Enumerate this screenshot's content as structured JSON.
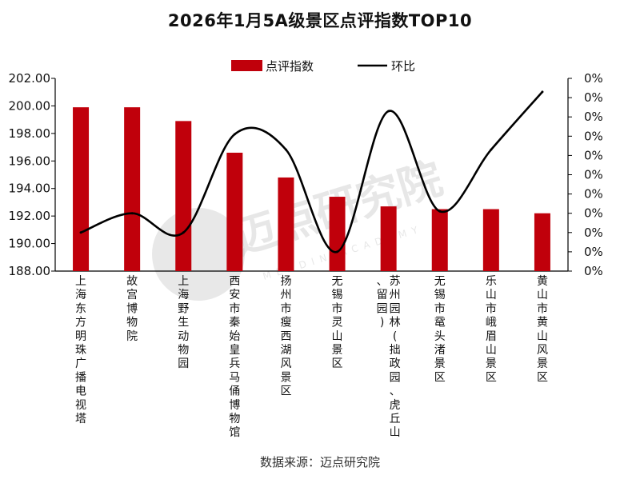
{
  "chart_data": {
    "type": "bar",
    "title": "2026年1月5A级景区点评指数TOP10",
    "categories": [
      "上海东方明珠广播电视塔",
      "故宫博物院",
      "上海野生动物园",
      "西安市秦始皇兵马俑博物馆",
      "扬州市瘦西湖风景区",
      "无锡市灵山景区",
      "苏州园林(拙政园、虎丘山、留园)",
      "无锡市鼋头渚景区",
      "乐山市峨眉山景区",
      "黄山市黄山风景区"
    ],
    "series": [
      {
        "name": "点评指数",
        "type": "bar",
        "axis": "left",
        "color": "#c0000b",
        "values": [
          199.9,
          199.9,
          198.9,
          196.6,
          194.8,
          193.4,
          192.7,
          192.5,
          192.5,
          192.2
        ]
      },
      {
        "name": "环比",
        "type": "line",
        "axis": "right",
        "color": "#000000",
        "values": [
          0.002,
          0.003,
          0.002,
          0.0071,
          0.0063,
          0.001,
          0.0083,
          0.0031,
          0.0063,
          0.0093
        ]
      }
    ],
    "y_left": {
      "ylim": [
        188.0,
        202.0
      ],
      "ticks": [
        "202.00",
        "200.00",
        "198.00",
        "196.00",
        "194.00",
        "192.00",
        "190.00",
        "188.00"
      ]
    },
    "y_right": {
      "ylim": [
        0.0,
        0.01
      ],
      "ticks": [
        "0%",
        "0%",
        "0%",
        "0%",
        "0%",
        "0%",
        "0%",
        "0%",
        "0%",
        "0%",
        "0%"
      ]
    },
    "legend": {
      "position": "top",
      "items": [
        "点评指数",
        "环比"
      ]
    },
    "grid": false
  },
  "watermark": {
    "text": "迈点研究院",
    "subtext": "MEADIN ACADEMY"
  },
  "source": "数据来源：迈点研究院"
}
